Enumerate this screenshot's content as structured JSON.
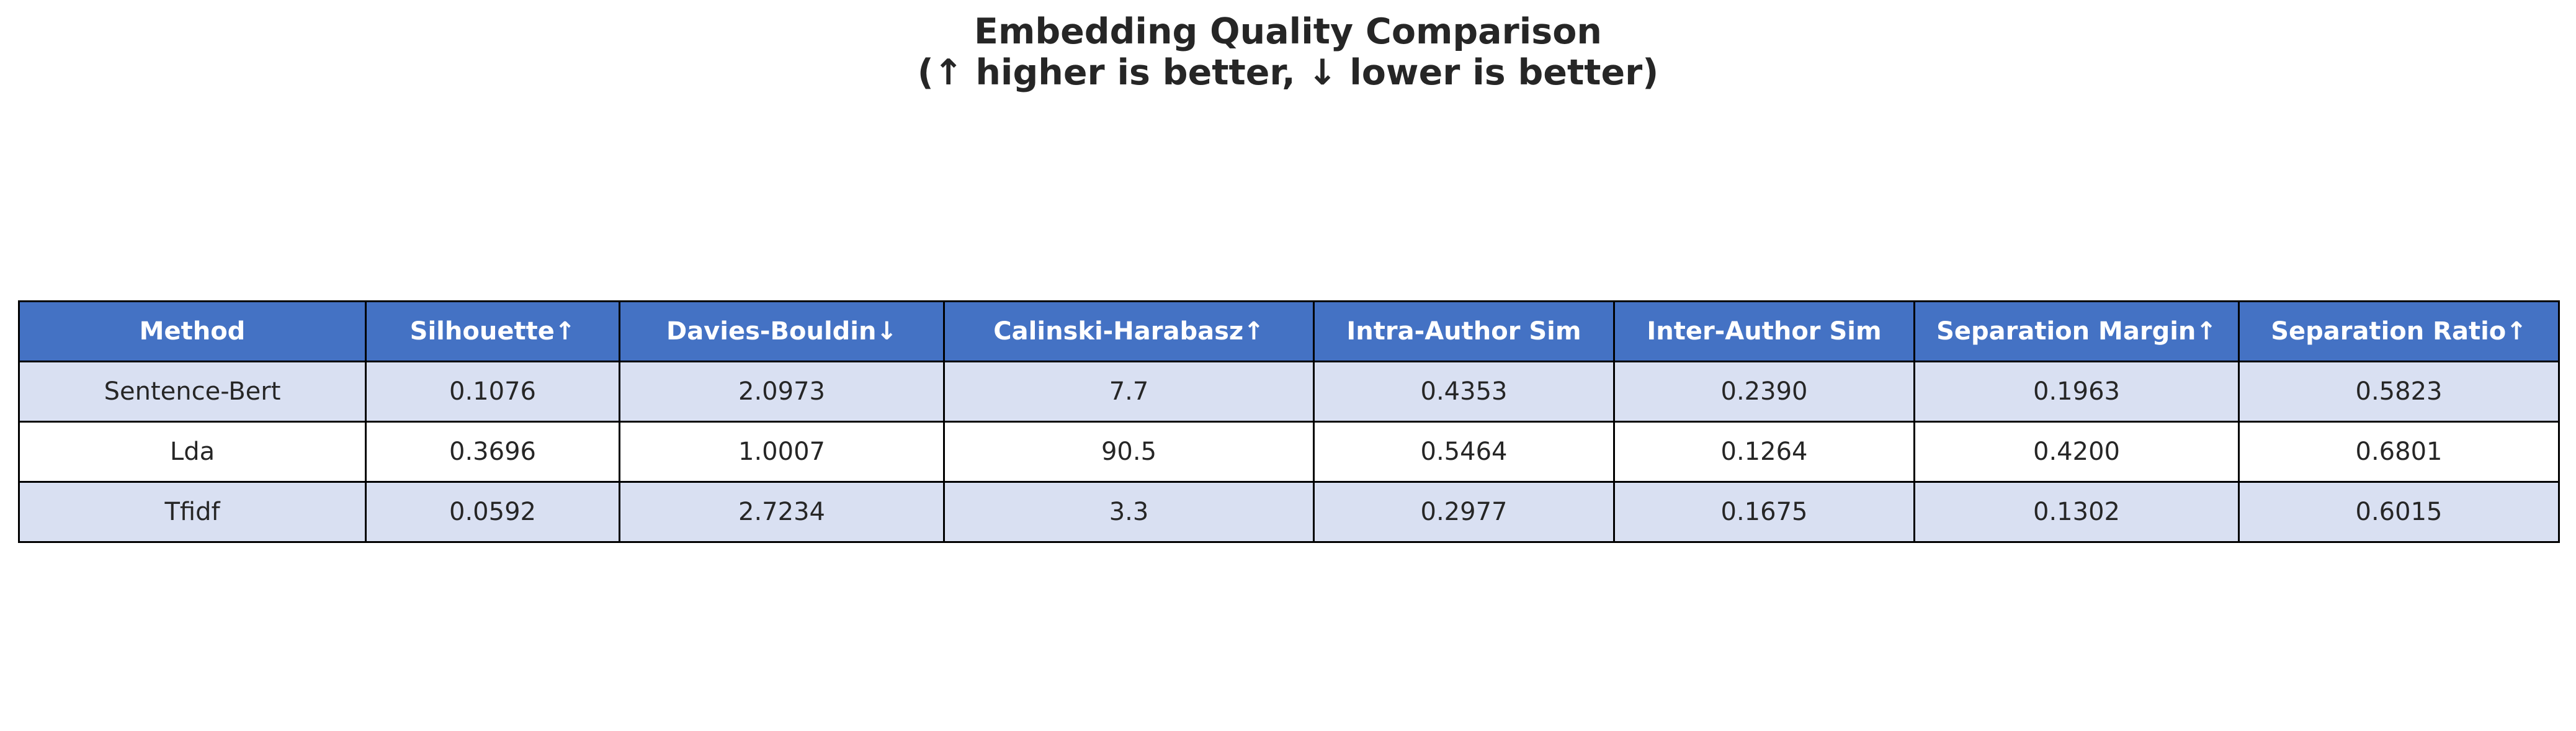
{
  "title": {
    "line1": "Embedding Quality Comparison",
    "line2": "(↑ higher is better, ↓ lower is better)"
  },
  "colors": {
    "header_bg": "#4472c4",
    "header_text": "#ffffff",
    "shaded_row_bg": "#d9e0f2",
    "plain_row_bg": "#ffffff",
    "border": "#000000"
  },
  "chart_data": {
    "type": "table",
    "title": "Embedding Quality Comparison\n(↑ higher is better, ↓ lower is better)",
    "columns": [
      "Method",
      "Silhouette↑",
      "Davies-Bouldin↓",
      "Calinski-Harabasz↑",
      "Intra-Author Sim",
      "Inter-Author Sim",
      "Separation Margin↑",
      "Separation Ratio↑"
    ],
    "rows": [
      [
        "Sentence-Bert",
        "0.1076",
        "2.0973",
        "7.7",
        "0.4353",
        "0.2390",
        "0.1963",
        "0.5823"
      ],
      [
        "Lda",
        "0.3696",
        "1.0007",
        "90.5",
        "0.5464",
        "0.1264",
        "0.4200",
        "0.6801"
      ],
      [
        "Tfidf",
        "0.0592",
        "2.7234",
        "3.3",
        "0.2977",
        "0.1675",
        "0.1302",
        "0.6015"
      ]
    ]
  }
}
